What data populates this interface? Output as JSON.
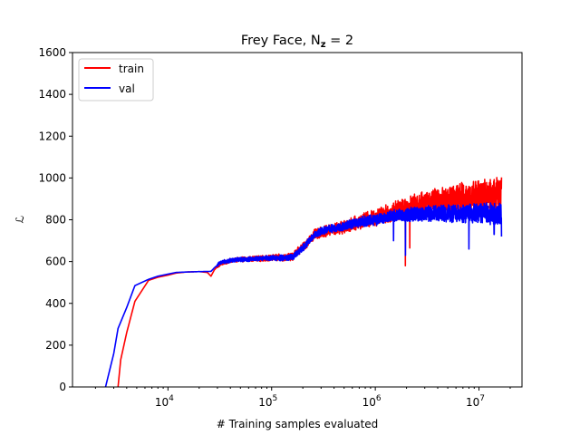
{
  "chart_data": {
    "type": "line",
    "title": "Frey Face, N",
    "title_subscript": "z",
    "title_suffix": " = 2",
    "xlabel": "# Training samples evaluated",
    "ylabel": "ℒ",
    "x_scale": "log",
    "xlim": [
      1200,
      26000000
    ],
    "ylim": [
      0,
      1600
    ],
    "x_ticks": [
      {
        "value": 10000,
        "base": "10",
        "exp": "4"
      },
      {
        "value": 100000,
        "base": "10",
        "exp": "5"
      },
      {
        "value": 1000000,
        "base": "10",
        "exp": "6"
      },
      {
        "value": 10000000,
        "base": "10",
        "exp": "7"
      }
    ],
    "y_ticks": [
      0,
      200,
      400,
      600,
      800,
      1000,
      1200,
      1400,
      1600
    ],
    "legend_position": "top-left",
    "grid": false,
    "series": [
      {
        "name": "train",
        "color": "#ff0000",
        "points": [
          [
            3300,
            0
          ],
          [
            3500,
            130
          ],
          [
            4000,
            260
          ],
          [
            4800,
            410
          ],
          [
            6500,
            510
          ],
          [
            8000,
            525
          ],
          [
            10000,
            535
          ],
          [
            12000,
            545
          ],
          [
            15000,
            550
          ],
          [
            20000,
            552
          ],
          [
            24000,
            548
          ],
          [
            26000,
            530
          ],
          [
            28000,
            560
          ],
          [
            32000,
            590
          ],
          [
            40000,
            605
          ],
          [
            50000,
            610
          ],
          [
            60000,
            612
          ],
          [
            80000,
            615
          ],
          [
            100000,
            618
          ],
          [
            130000,
            620
          ],
          [
            160000,
            625
          ],
          [
            180000,
            650
          ],
          [
            200000,
            670
          ],
          [
            230000,
            700
          ],
          [
            260000,
            730
          ],
          [
            300000,
            740
          ],
          [
            400000,
            755
          ],
          [
            500000,
            765
          ],
          [
            700000,
            790
          ],
          [
            1000000,
            810
          ],
          [
            1500000,
            840
          ],
          [
            2000000,
            860
          ],
          [
            3000000,
            880
          ],
          [
            5000000,
            900
          ],
          [
            8000000,
            910
          ],
          [
            12000000,
            915
          ],
          [
            16500000,
            920
          ]
        ],
        "noise_start": 30000,
        "noise_amp_start": 10,
        "noise_amp_end": 90,
        "dips": [
          [
            1950000,
            580
          ],
          [
            2150000,
            665
          ]
        ]
      },
      {
        "name": "val",
        "color": "#0000ff",
        "points": [
          [
            2500,
            0
          ],
          [
            3000,
            160
          ],
          [
            3300,
            280
          ],
          [
            4000,
            380
          ],
          [
            4800,
            485
          ],
          [
            6500,
            515
          ],
          [
            8000,
            530
          ],
          [
            10000,
            540
          ],
          [
            12000,
            548
          ],
          [
            15000,
            550
          ],
          [
            20000,
            552
          ],
          [
            26000,
            553
          ],
          [
            28000,
            570
          ],
          [
            32000,
            595
          ],
          [
            40000,
            605
          ],
          [
            50000,
            610
          ],
          [
            60000,
            612
          ],
          [
            80000,
            615
          ],
          [
            100000,
            616
          ],
          [
            130000,
            618
          ],
          [
            160000,
            622
          ],
          [
            180000,
            645
          ],
          [
            200000,
            665
          ],
          [
            230000,
            700
          ],
          [
            260000,
            725
          ],
          [
            300000,
            745
          ],
          [
            400000,
            760
          ],
          [
            500000,
            770
          ],
          [
            700000,
            790
          ],
          [
            1000000,
            800
          ],
          [
            1500000,
            820
          ],
          [
            2000000,
            825
          ],
          [
            3000000,
            830
          ],
          [
            5000000,
            830
          ],
          [
            8000000,
            830
          ],
          [
            12000000,
            830
          ],
          [
            16500000,
            825
          ]
        ],
        "noise_start": 30000,
        "noise_amp_start": 10,
        "noise_amp_end": 55,
        "dips": [
          [
            1500000,
            700
          ],
          [
            1950000,
            630
          ],
          [
            8000000,
            660
          ],
          [
            14000000,
            730
          ],
          [
            16500000,
            720
          ]
        ]
      }
    ]
  }
}
